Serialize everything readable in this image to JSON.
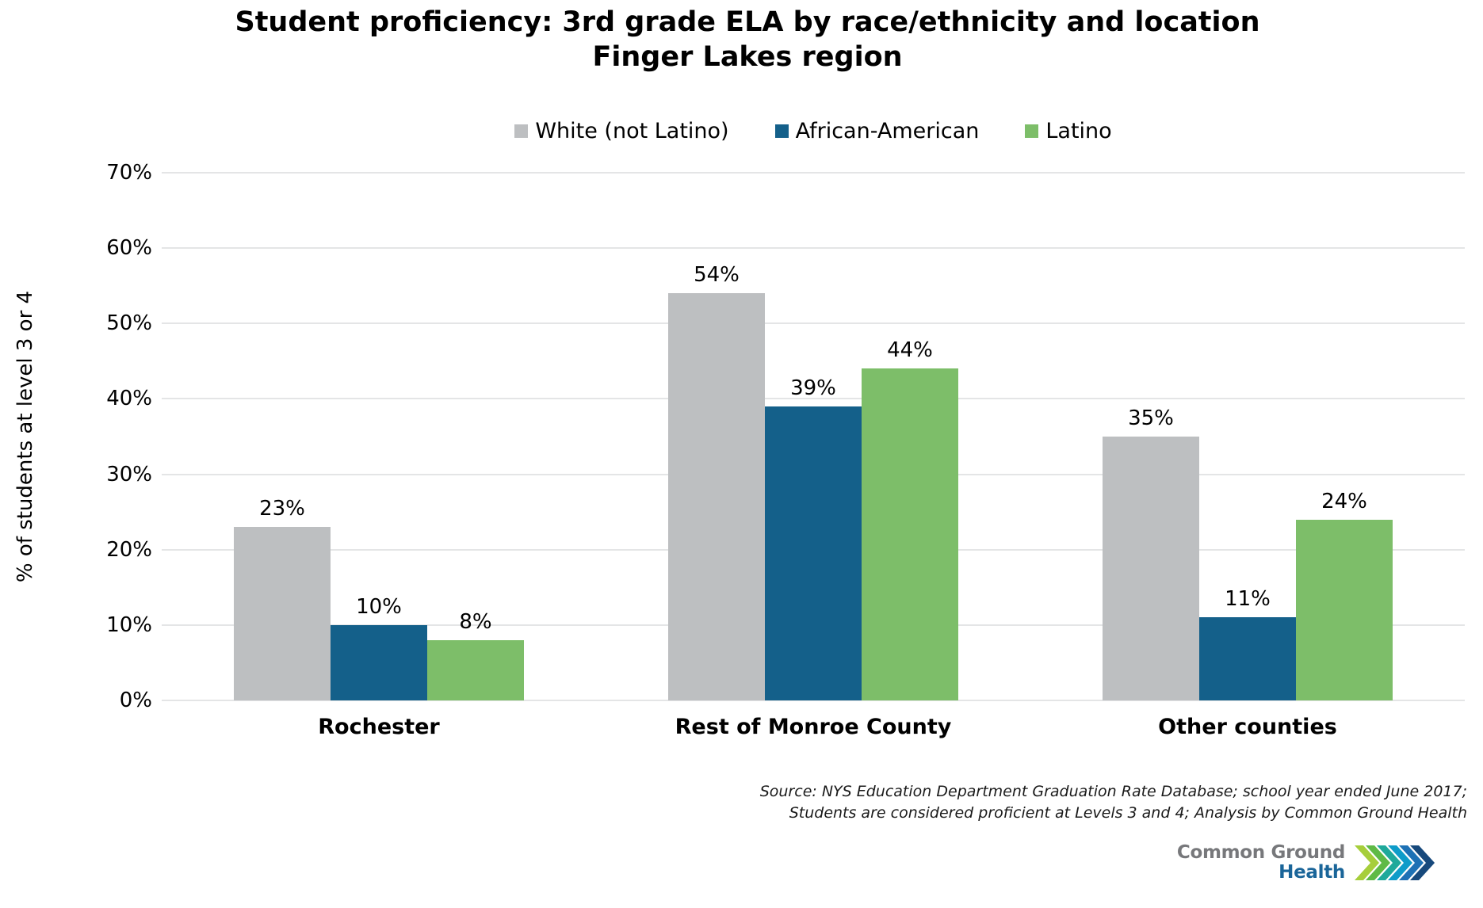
{
  "header": {
    "title_line1": "Student proficiency: 3rd grade ELA by race/ethnicity and location",
    "title_line2": "Finger Lakes region"
  },
  "chart_data": {
    "type": "bar",
    "title": "Student proficiency: 3rd grade ELA by race/ethnicity and location — Finger Lakes region",
    "categories": [
      "Rochester",
      "Rest of Monroe County",
      "Other counties"
    ],
    "series": [
      {
        "name": "White (not Latino)",
        "color": "#BDBFC1",
        "values": [
          23,
          54,
          35
        ]
      },
      {
        "name": "African-American",
        "color": "#14608A",
        "values": [
          10,
          39,
          11
        ]
      },
      {
        "name": "Latino",
        "color": "#7DBE69",
        "values": [
          8,
          44,
          24
        ]
      }
    ],
    "value_suffix": "%",
    "xlabel": "",
    "ylabel": "% of students at level 3 or 4",
    "ylim": [
      0,
      70
    ],
    "yticks": [
      0,
      10,
      20,
      30,
      40,
      50,
      60,
      70
    ],
    "grid": true,
    "legend_position": "top",
    "data_labels": true
  },
  "source": {
    "line1": "Source: NYS Education Department Graduation Rate Database; school year ended June 2017;",
    "line2": "Students are considered proficient at Levels 3 and 4; Analysis by Common Ground Health"
  },
  "logo": {
    "line1": "Common Ground",
    "line2": "Health"
  }
}
